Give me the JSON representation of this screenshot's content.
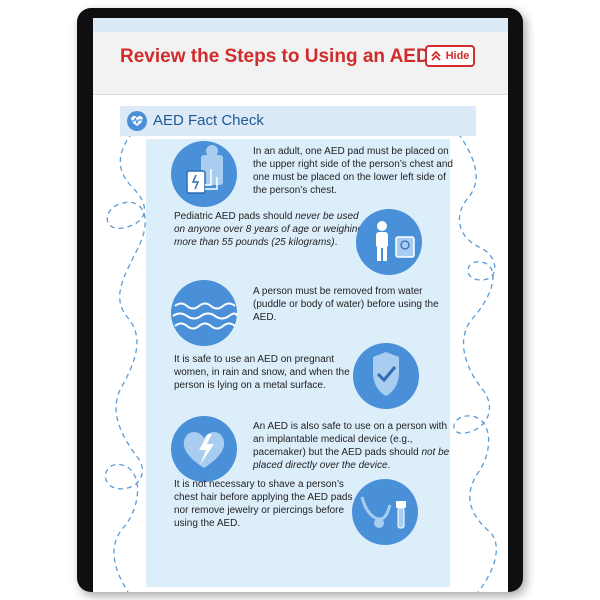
{
  "header": {
    "title": "Review the Steps to Using an AED",
    "hide_label": "Hide"
  },
  "section": {
    "title": "AED Fact Check"
  },
  "facts": [
    {
      "icon": "aed-pad-placement-icon",
      "text": "In an adult, one AED pad must be placed on the upper right side of the person’s chest and one must be placed on the lower left side of the person’s chest."
    },
    {
      "icon": "pediatric-scale-icon",
      "text_before": "Pediatric AED pads should ",
      "text_italic": "never be used on anyone over 8 years of age or weighing more than 55 pounds (25 kilograms)",
      "text_after": "."
    },
    {
      "icon": "water-icon",
      "text": "A person must be removed from water (puddle or body of water) before using the AED."
    },
    {
      "icon": "shield-check-icon",
      "text": "It is safe to use an AED on pregnant women, in rain and snow, and when the person is lying on a metal surface."
    },
    {
      "icon": "heart-device-icon",
      "text_before": "An AED is also safe to use on a person with an implantable medical device (e.g., pacemaker) but the AED pads should ",
      "text_italic": "not be placed directly over the device",
      "text_after": "."
    },
    {
      "icon": "jewelry-razor-icon",
      "text": "It is not necessary to shave a person’s chest hair before applying the AED pads nor remove jewelry or piercings before using the AED."
    }
  ],
  "colors": {
    "title_red": "#d12b2b",
    "accent_blue": "#4a90d9",
    "panel_blue": "#ddeefb",
    "dash_blue": "#5b9bd5"
  }
}
